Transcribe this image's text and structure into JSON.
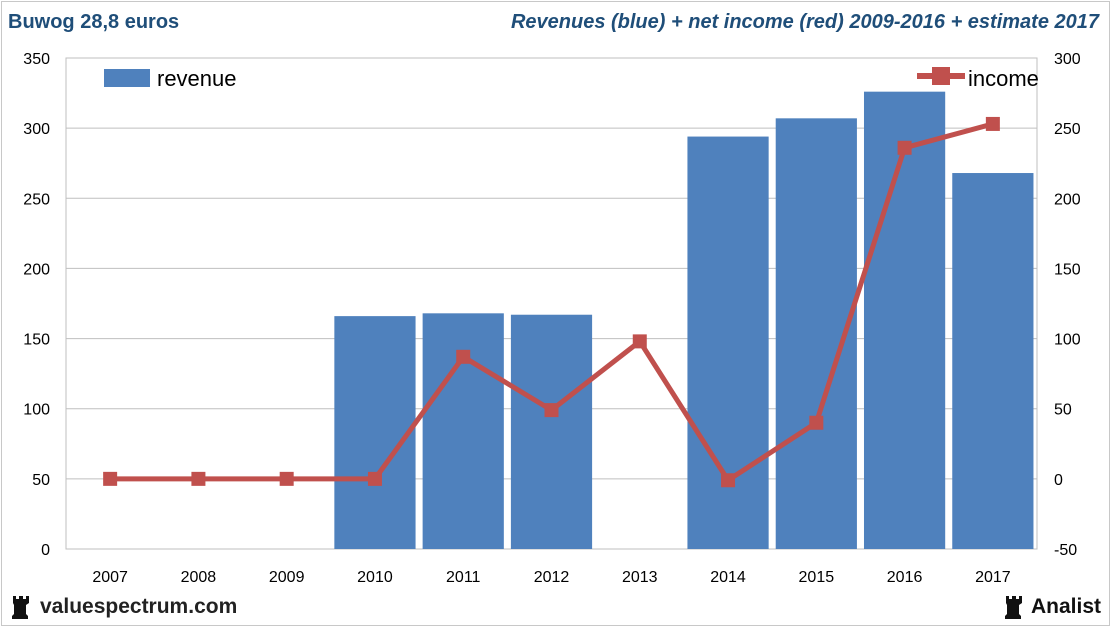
{
  "header": {
    "title": "Buwog 28,8 euros",
    "subtitle": "Revenues (blue) + net income (red) 2009-2016 + estimate 2017"
  },
  "footer": {
    "site": "valuespectrum.com",
    "brand": "Analist",
    "site_icon": "rook-icon",
    "brand_icon": "rook-icon"
  },
  "chart_data": {
    "type": "bar",
    "categories": [
      "2007",
      "2008",
      "2009",
      "2010",
      "2011",
      "2012",
      "2013",
      "2014",
      "2015",
      "2016",
      "2017"
    ],
    "series": [
      {
        "name": "revenue",
        "type": "bar",
        "axis": "left",
        "color": "#4f81bd",
        "values": [
          null,
          null,
          null,
          166,
          168,
          167,
          null,
          294,
          307,
          326,
          268
        ]
      },
      {
        "name": "income",
        "type": "line",
        "axis": "right",
        "color": "#c0504d",
        "values": [
          0,
          0,
          0,
          0,
          87,
          49,
          98,
          -1,
          40,
          236,
          253
        ]
      }
    ],
    "left_axis": {
      "ylim": [
        0,
        350
      ],
      "ticks": [
        "0",
        "50",
        "100",
        "150",
        "200",
        "250",
        "300",
        "350"
      ]
    },
    "right_axis": {
      "ylim": [
        -50,
        300
      ],
      "ticks": [
        "-50",
        "0",
        "50",
        "100",
        "150",
        "200",
        "250",
        "300"
      ]
    },
    "grid": true,
    "legend": [
      {
        "label": "revenue",
        "placement": "top-left"
      },
      {
        "label": "income",
        "placement": "top-right"
      }
    ]
  }
}
